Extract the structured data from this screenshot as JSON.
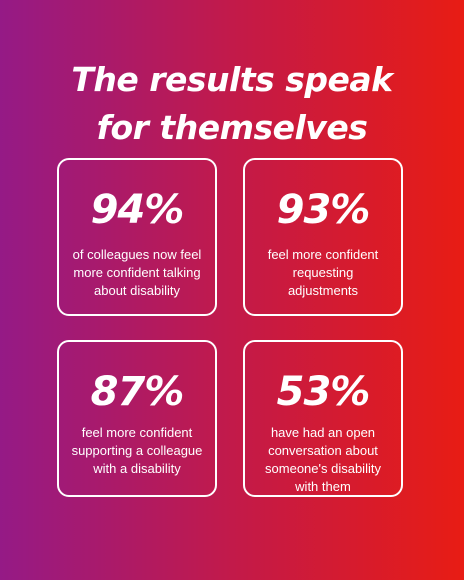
{
  "headline": {
    "line1": "The results speak",
    "line2": "for themselves"
  },
  "stats": [
    {
      "value": "94%",
      "text": "of colleagues now feel more confident talking about disability"
    },
    {
      "value": "93%",
      "text": "feel more confident requesting adjustments"
    },
    {
      "value": "87%",
      "text": "feel more confident supporting a colleague with a disability"
    },
    {
      "value": "53%",
      "text": "have had an open conversation about someone's disability with them"
    }
  ],
  "colors": {
    "gradient_start": "#951a86",
    "gradient_end": "#e81c14",
    "text": "#ffffff",
    "card_border": "#ffffff"
  }
}
